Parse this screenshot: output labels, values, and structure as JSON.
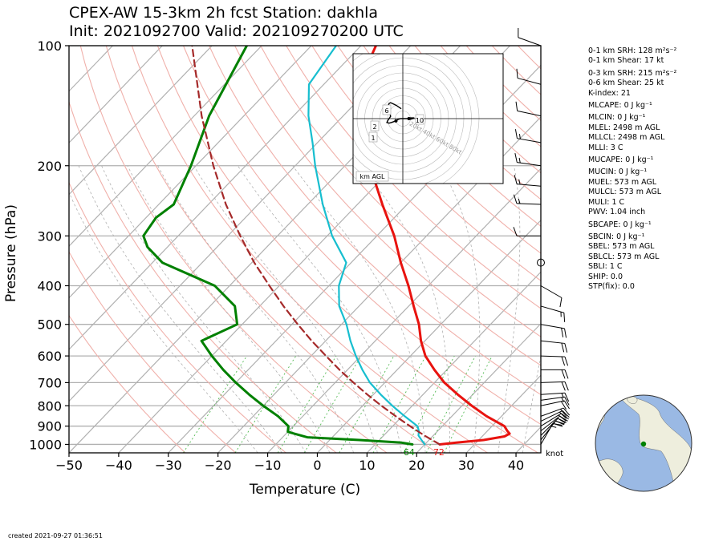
{
  "title": {
    "line1": "CPEX-AW 15-3km  2h fcst  Station: dakhla",
    "line2": "Init: 2021092700  Valid: 202109270200 UTC"
  },
  "created": "created 2021-09-27 01:36:51",
  "stats": [
    {
      "text": "0-1 km SRH: 128 m²s⁻²",
      "gap": false
    },
    {
      "text": "0-1 km Shear: 17 kt",
      "gap": false
    },
    {
      "text": "0-3 km SRH: 215 m²s⁻²",
      "gap": true
    },
    {
      "text": "0-6 km Shear: 25 kt",
      "gap": false
    },
    {
      "text": "K-index: 21",
      "gap": false
    },
    {
      "text": "MLCAPE: 0 J kg⁻¹",
      "gap": true
    },
    {
      "text": "MLCIN: 0 J kg⁻¹",
      "gap": true
    },
    {
      "text": "MLEL: 2498 m AGL",
      "gap": false
    },
    {
      "text": "MLLCL: 2498 m AGL",
      "gap": false
    },
    {
      "text": "MLLI: 3 C",
      "gap": false
    },
    {
      "text": "MUCAPE: 0 J kg⁻¹",
      "gap": true
    },
    {
      "text": "MUCIN: 0 J kg⁻¹",
      "gap": true
    },
    {
      "text": "MUEL: 573 m AGL",
      "gap": false
    },
    {
      "text": "MULCL: 573 m AGL",
      "gap": false
    },
    {
      "text": "MULI: 1 C",
      "gap": false
    },
    {
      "text": "PWV: 1.04 inch",
      "gap": false
    },
    {
      "text": "SBCAPE: 0 J kg⁻¹",
      "gap": true
    },
    {
      "text": "SBCIN: 0 J kg⁻¹",
      "gap": true
    },
    {
      "text": "SBEL: 573 m AGL",
      "gap": false
    },
    {
      "text": "SBLCL: 573 m AGL",
      "gap": false
    },
    {
      "text": "SBLI: 1 C",
      "gap": false
    },
    {
      "text": "SHIP: 0.0",
      "gap": false
    },
    {
      "text": "STP(fix): 0.0",
      "gap": false
    }
  ],
  "chart_data": {
    "type": "line",
    "subtype": "skew-T log-P sounding",
    "xlabel": "Temperature (C)",
    "ylabel": "Pressure (hPa)",
    "xlim": [
      -50,
      45
    ],
    "ylim": [
      1050,
      100
    ],
    "y_scale": "log",
    "x_ticks": [
      -50,
      -40,
      -30,
      -20,
      -10,
      0,
      10,
      20,
      30,
      40
    ],
    "y_ticks": [
      100,
      200,
      300,
      400,
      500,
      600,
      700,
      800,
      900,
      1000
    ],
    "x_tick_labels": [
      "−50",
      "−40",
      "−30",
      "−20",
      "−10",
      "0",
      "10",
      "20",
      "30",
      "40"
    ],
    "y_tick_labels": [
      "100",
      "200",
      "300",
      "400",
      "500",
      "600",
      "700",
      "800",
      "900",
      "1000"
    ],
    "grid": true,
    "surface_labels": {
      "dewpoint_f": "64",
      "temperature_f": "72",
      "wind_units": "knot"
    },
    "series": [
      {
        "key": "temperature",
        "color": "#e8130f",
        "points": [
          [
            1000,
            23
          ],
          [
            990,
            26
          ],
          [
            975,
            31
          ],
          [
            955,
            34.5
          ],
          [
            940,
            35
          ],
          [
            925,
            34
          ],
          [
            900,
            32.5
          ],
          [
            850,
            27
          ],
          [
            800,
            22
          ],
          [
            750,
            17
          ],
          [
            700,
            12
          ],
          [
            650,
            7.5
          ],
          [
            600,
            3
          ],
          [
            550,
            -0.8
          ],
          [
            500,
            -4.4
          ],
          [
            450,
            -9
          ],
          [
            400,
            -14
          ],
          [
            350,
            -20
          ],
          [
            300,
            -26.5
          ],
          [
            250,
            -35
          ],
          [
            200,
            -45
          ],
          [
            175,
            -51
          ],
          [
            150,
            -57
          ],
          [
            125,
            -63
          ],
          [
            100,
            -67
          ]
        ]
      },
      {
        "key": "dewpoint",
        "color": "#008000",
        "points": [
          [
            1000,
            17.5
          ],
          [
            990,
            15
          ],
          [
            975,
            6
          ],
          [
            960,
            -5
          ],
          [
            930,
            -10
          ],
          [
            900,
            -11
          ],
          [
            850,
            -15
          ],
          [
            800,
            -20
          ],
          [
            750,
            -25
          ],
          [
            700,
            -30
          ],
          [
            650,
            -35
          ],
          [
            600,
            -40
          ],
          [
            550,
            -45
          ],
          [
            500,
            -41
          ],
          [
            450,
            -45
          ],
          [
            400,
            -53
          ],
          [
            350,
            -68
          ],
          [
            320,
            -74
          ],
          [
            300,
            -77
          ],
          [
            270,
            -78
          ],
          [
            250,
            -77
          ],
          [
            200,
            -81
          ],
          [
            150,
            -87
          ],
          [
            100,
            -93
          ]
        ]
      },
      {
        "key": "virtual_temperature",
        "color": "#17becf",
        "points": [
          [
            1000,
            20
          ],
          [
            975,
            18.5
          ],
          [
            950,
            17
          ],
          [
            925,
            16.2
          ],
          [
            900,
            15
          ],
          [
            850,
            10.5
          ],
          [
            800,
            6
          ],
          [
            750,
            1.5
          ],
          [
            700,
            -3
          ],
          [
            650,
            -7
          ],
          [
            600,
            -11
          ],
          [
            550,
            -15
          ],
          [
            500,
            -19
          ],
          [
            450,
            -24
          ],
          [
            400,
            -28
          ],
          [
            350,
            -31
          ],
          [
            300,
            -39
          ],
          [
            250,
            -47
          ],
          [
            200,
            -56
          ],
          [
            175,
            -61
          ],
          [
            150,
            -67
          ],
          [
            125,
            -73
          ],
          [
            100,
            -75
          ]
        ]
      },
      {
        "key": "parcel",
        "color": "#a52a2a",
        "points": [
          [
            1000,
            23
          ],
          [
            950,
            18.2
          ],
          [
            900,
            13.5
          ],
          [
            850,
            8.7
          ],
          [
            800,
            3.8
          ],
          [
            750,
            -1.2
          ],
          [
            700,
            -6.3
          ],
          [
            650,
            -11.6
          ],
          [
            600,
            -17
          ],
          [
            550,
            -22.8
          ],
          [
            500,
            -28.8
          ],
          [
            450,
            -35.2
          ],
          [
            400,
            -42
          ],
          [
            350,
            -49.5
          ],
          [
            300,
            -57.5
          ],
          [
            250,
            -66.5
          ],
          [
            200,
            -76.5
          ],
          [
            150,
            -88.5
          ],
          [
            100,
            -104
          ]
        ]
      }
    ],
    "wind_barbs": [
      {
        "p": 1000,
        "speed_kt": 17,
        "dir_deg": 30
      },
      {
        "p": 975,
        "speed_kt": 19,
        "dir_deg": 38
      },
      {
        "p": 950,
        "speed_kt": 20,
        "dir_deg": 45
      },
      {
        "p": 925,
        "speed_kt": 21,
        "dir_deg": 52
      },
      {
        "p": 900,
        "speed_kt": 22,
        "dir_deg": 58
      },
      {
        "p": 875,
        "speed_kt": 21,
        "dir_deg": 64
      },
      {
        "p": 850,
        "speed_kt": 20,
        "dir_deg": 70
      },
      {
        "p": 800,
        "speed_kt": 18,
        "dir_deg": 78
      },
      {
        "p": 775,
        "speed_kt": 16,
        "dir_deg": 82
      },
      {
        "p": 750,
        "speed_kt": 15,
        "dir_deg": 86
      },
      {
        "p": 700,
        "speed_kt": 18,
        "dir_deg": 88
      },
      {
        "p": 650,
        "speed_kt": 20,
        "dir_deg": 90
      },
      {
        "p": 600,
        "speed_kt": 22,
        "dir_deg": 92
      },
      {
        "p": 550,
        "speed_kt": 20,
        "dir_deg": 96
      },
      {
        "p": 500,
        "speed_kt": 18,
        "dir_deg": 100
      },
      {
        "p": 450,
        "speed_kt": 15,
        "dir_deg": 106
      },
      {
        "p": 400,
        "speed_kt": 10,
        "dir_deg": 120
      },
      {
        "p": 350,
        "speed_kt": 0,
        "dir_deg": 0
      },
      {
        "p": 300,
        "speed_kt": 12,
        "dir_deg": 270
      },
      {
        "p": 250,
        "speed_kt": 15,
        "dir_deg": 272
      },
      {
        "p": 225,
        "speed_kt": 15,
        "dir_deg": 275
      },
      {
        "p": 200,
        "speed_kt": 14,
        "dir_deg": 278
      },
      {
        "p": 175,
        "speed_kt": 13,
        "dir_deg": 280
      },
      {
        "p": 150,
        "speed_kt": 12,
        "dir_deg": 282
      },
      {
        "p": 125,
        "speed_kt": 10,
        "dir_deg": 285
      },
      {
        "p": 100,
        "speed_kt": 8,
        "dir_deg": 290
      }
    ],
    "hodograph": {
      "range_labels": [
        "20kt",
        "40kt",
        "60kt",
        "80kt"
      ],
      "height_labels": [
        "1",
        "2",
        "6",
        "10"
      ],
      "unit_label": "km AGL",
      "path_kt": [
        [
          -2,
          -13
        ],
        [
          -5,
          -15
        ],
        [
          -8,
          -17
        ],
        [
          -12,
          -19
        ],
        [
          -16,
          -21
        ],
        [
          -18,
          -20
        ],
        [
          -19,
          -17
        ],
        [
          -19,
          -14
        ],
        [
          -18,
          -11
        ],
        [
          -17,
          -7
        ],
        [
          -16,
          -3
        ],
        [
          -18,
          0
        ],
        [
          -20,
          3
        ],
        [
          -21,
          5
        ],
        [
          -18,
          6
        ],
        [
          -15,
          5
        ],
        [
          -12,
          4
        ],
        [
          -9,
          3
        ],
        [
          -6,
          1
        ],
        [
          -3,
          0
        ],
        [
          0,
          0
        ],
        [
          3,
          0
        ],
        [
          6,
          0
        ],
        [
          9,
          -1
        ],
        [
          13,
          -1
        ],
        [
          15,
          -1
        ],
        [
          13,
          0
        ],
        [
          10,
          1
        ],
        [
          8,
          0
        ]
      ],
      "marker_kt": [
        [
          -9,
          3
        ],
        [
          8,
          0
        ]
      ]
    }
  },
  "globe": {
    "ocean_color": "#9ab9e4",
    "land_color": "#eeeedd",
    "station_color": "#008000",
    "station_lat": 23.7,
    "station_lon": -15.9
  }
}
